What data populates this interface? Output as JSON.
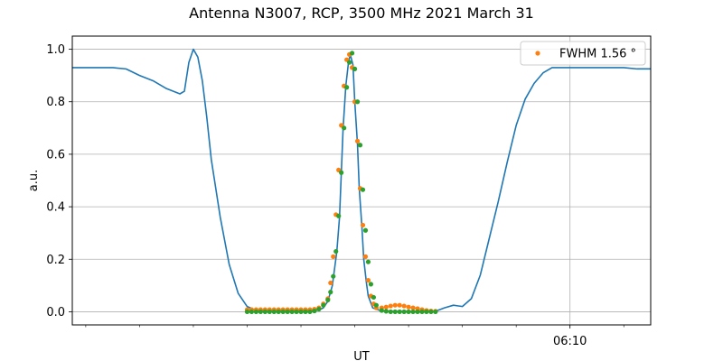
{
  "chart_data": {
    "type": "line",
    "title": "Antenna N3007, RCP, 3500 MHz 2021 March 31",
    "xlabel": "UT",
    "ylabel": "a.u.",
    "xlim": [
      "06:00:45",
      "06:11:30"
    ],
    "ylim": [
      -0.05,
      1.05
    ],
    "x_tick_labels": [
      {
        "x": "06:10:00",
        "label": "06:10"
      }
    ],
    "y_ticks": [
      0.0,
      0.2,
      0.4,
      0.6,
      0.8,
      1.0
    ],
    "y_tick_labels": [
      "0.0",
      "0.2",
      "0.4",
      "0.6",
      "0.8",
      "1.0"
    ],
    "grid": true,
    "legend_position": "top-right",
    "colors": {
      "signal": "#1f77b4",
      "fit": "#ff7f0e",
      "points": "#2ca02c",
      "grid": "#b0b0b0"
    },
    "series": [
      {
        "type": "line",
        "color": "#1f77b4",
        "x": [
          "06:00:45",
          "06:01:00",
          "06:01:15",
          "06:01:30",
          "06:01:45",
          "06:02:00",
          "06:02:15",
          "06:02:30",
          "06:02:45",
          "06:02:50",
          "06:02:55",
          "06:03:00",
          "06:03:05",
          "06:03:10",
          "06:03:15",
          "06:03:20",
          "06:03:30",
          "06:03:40",
          "06:03:50",
          "06:04:00",
          "06:04:10",
          "06:04:20",
          "06:04:30",
          "06:04:40",
          "06:04:50",
          "06:05:00",
          "06:05:10",
          "06:05:20",
          "06:05:25",
          "06:05:30",
          "06:05:35",
          "06:05:40",
          "06:05:43",
          "06:05:45",
          "06:05:47",
          "06:05:50",
          "06:05:53",
          "06:05:55",
          "06:05:58",
          "06:06:00",
          "06:06:03",
          "06:06:05",
          "06:06:08",
          "06:06:10",
          "06:06:13",
          "06:06:15",
          "06:06:20",
          "06:06:30",
          "06:06:40",
          "06:06:50",
          "06:07:00",
          "06:07:10",
          "06:07:20",
          "06:07:30",
          "06:07:40",
          "06:07:50",
          "06:08:00",
          "06:08:10",
          "06:08:20",
          "06:08:30",
          "06:08:40",
          "06:08:50",
          "06:09:00",
          "06:09:10",
          "06:09:20",
          "06:09:30",
          "06:09:40",
          "06:09:50",
          "06:10:00",
          "06:10:10",
          "06:10:20",
          "06:10:30",
          "06:10:40",
          "06:10:50",
          "06:11:00",
          "06:11:15",
          "06:11:30"
        ],
        "y": [
          0.93,
          0.93,
          0.93,
          0.93,
          0.925,
          0.9,
          0.88,
          0.85,
          0.83,
          0.84,
          0.95,
          1.0,
          0.97,
          0.88,
          0.74,
          0.58,
          0.36,
          0.18,
          0.07,
          0.02,
          0.005,
          0.003,
          0.003,
          0.003,
          0.003,
          0.003,
          0.004,
          0.007,
          0.015,
          0.04,
          0.1,
          0.23,
          0.36,
          0.53,
          0.7,
          0.86,
          0.95,
          0.98,
          0.94,
          0.8,
          0.64,
          0.47,
          0.32,
          0.2,
          0.11,
          0.06,
          0.015,
          0.003,
          0.002,
          0.002,
          0.002,
          0.002,
          0.002,
          0.002,
          0.015,
          0.025,
          0.02,
          0.05,
          0.14,
          0.28,
          0.42,
          0.57,
          0.71,
          0.81,
          0.87,
          0.91,
          0.93,
          0.93,
          0.93,
          0.93,
          0.93,
          0.93,
          0.93,
          0.93,
          0.93,
          0.925,
          0.925
        ]
      },
      {
        "type": "scatter",
        "name": "FWHM 1.56$^\\circ$",
        "legend_label": "FWHM 1.56 °",
        "color": "#ff7f0e",
        "x": [
          "06:04:00",
          "06:04:05",
          "06:04:10",
          "06:04:15",
          "06:04:20",
          "06:04:25",
          "06:04:30",
          "06:04:35",
          "06:04:40",
          "06:04:45",
          "06:04:50",
          "06:04:55",
          "06:05:00",
          "06:05:05",
          "06:05:10",
          "06:05:15",
          "06:05:20",
          "06:05:25",
          "06:05:30",
          "06:05:33",
          "06:05:36",
          "06:05:39",
          "06:05:42",
          "06:05:45",
          "06:05:48",
          "06:05:51",
          "06:05:54",
          "06:05:57",
          "06:06:00",
          "06:06:03",
          "06:06:06",
          "06:06:09",
          "06:06:12",
          "06:06:15",
          "06:06:18",
          "06:06:21",
          "06:06:24",
          "06:06:30",
          "06:06:35",
          "06:06:40",
          "06:06:45",
          "06:06:50",
          "06:06:55",
          "06:07:00",
          "06:07:05",
          "06:07:10",
          "06:07:15",
          "06:07:20",
          "06:07:25",
          "06:07:30"
        ],
        "y": [
          0.008,
          0.008,
          0.008,
          0.008,
          0.008,
          0.008,
          0.008,
          0.008,
          0.008,
          0.008,
          0.008,
          0.008,
          0.008,
          0.008,
          0.008,
          0.01,
          0.015,
          0.03,
          0.05,
          0.11,
          0.21,
          0.37,
          0.54,
          0.71,
          0.86,
          0.96,
          0.98,
          0.93,
          0.8,
          0.65,
          0.47,
          0.33,
          0.21,
          0.12,
          0.06,
          0.03,
          0.015,
          0.015,
          0.018,
          0.022,
          0.025,
          0.025,
          0.022,
          0.018,
          0.015,
          0.012,
          0.008,
          0.005,
          0.003,
          0.002
        ]
      },
      {
        "type": "scatter",
        "color": "#2ca02c",
        "x": [
          "06:04:00",
          "06:04:05",
          "06:04:10",
          "06:04:15",
          "06:04:20",
          "06:04:25",
          "06:04:30",
          "06:04:35",
          "06:04:40",
          "06:04:45",
          "06:04:50",
          "06:04:55",
          "06:05:00",
          "06:05:05",
          "06:05:10",
          "06:05:15",
          "06:05:20",
          "06:05:25",
          "06:05:30",
          "06:05:33",
          "06:05:36",
          "06:05:39",
          "06:05:42",
          "06:05:45",
          "06:05:48",
          "06:05:51",
          "06:05:54",
          "06:05:57",
          "06:06:00",
          "06:06:03",
          "06:06:06",
          "06:06:09",
          "06:06:12",
          "06:06:15",
          "06:06:18",
          "06:06:21",
          "06:06:24",
          "06:06:30",
          "06:06:35",
          "06:06:40",
          "06:06:45",
          "06:06:50",
          "06:06:55",
          "06:07:00",
          "06:07:05",
          "06:07:10",
          "06:07:15",
          "06:07:20",
          "06:07:25",
          "06:07:30"
        ],
        "y": [
          0.0,
          0.0,
          0.0,
          0.0,
          0.0,
          0.0,
          0.0,
          0.0,
          0.0,
          0.0,
          0.0,
          0.0,
          0.0,
          0.0,
          0.0,
          0.003,
          0.01,
          0.025,
          0.045,
          0.075,
          0.135,
          0.23,
          0.365,
          0.53,
          0.7,
          0.855,
          0.95,
          0.985,
          0.925,
          0.8,
          0.635,
          0.465,
          0.31,
          0.19,
          0.105,
          0.055,
          0.025,
          0.005,
          0.002,
          0.0,
          0.0,
          0.0,
          0.0,
          0.0,
          0.0,
          0.0,
          0.0,
          0.0,
          0.0,
          0.0
        ]
      }
    ]
  }
}
